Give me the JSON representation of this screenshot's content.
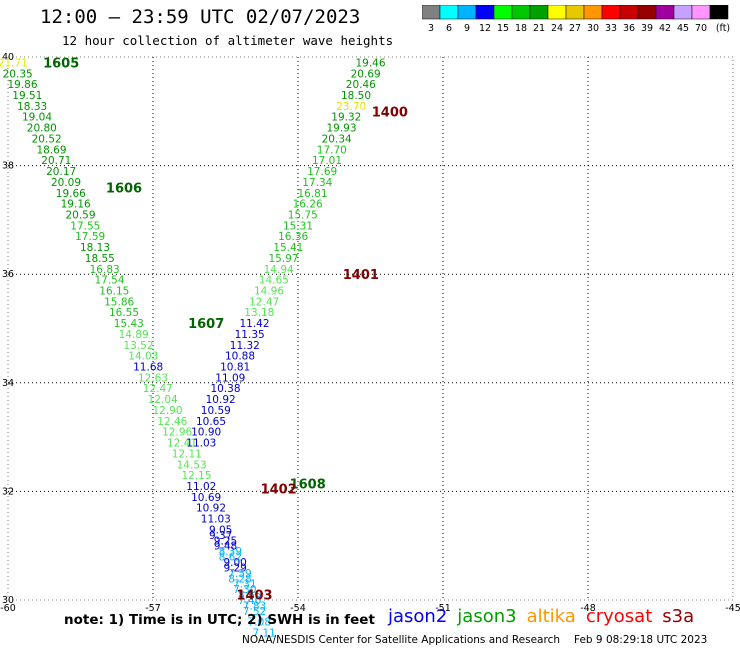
{
  "header": {
    "title": "12:00 — 23:59 UTC 02/07/2023",
    "subtitle": "12 hour collection of altimeter wave heights"
  },
  "colorbar": {
    "colors": [
      "#808080",
      "#00ffff",
      "#00b4ff",
      "#0000ff",
      "#00ff00",
      "#00c800",
      "#00a000",
      "#ffff00",
      "#e6c800",
      "#ff9600",
      "#ff0000",
      "#c80000",
      "#960000",
      "#a000a0",
      "#c8a0ff",
      "#ff96ff",
      "#000000"
    ],
    "labels": [
      "3",
      "6",
      "9",
      "12",
      "15",
      "18",
      "21",
      "24",
      "27",
      "30",
      "33",
      "36",
      "39",
      "42",
      "45",
      "70",
      "(ft)"
    ]
  },
  "note": "note:  1) Time is in UTC; 2) SWH is in feet",
  "legend": [
    {
      "label": "jason2",
      "color": "#0000ff"
    },
    {
      "label": "jason3",
      "color": "#00a000"
    },
    {
      "label": "altika",
      "color": "#ff9600"
    },
    {
      "label": "cryosat",
      "color": "#ff0000"
    },
    {
      "label": "s3a",
      "color": "#960000"
    }
  ],
  "footer": {
    "source": "NOAA/NESDIS Center for Satellite Applications and Research",
    "timestamp": "Feb  9 08:29:18 UTC 2023"
  },
  "chart_data": {
    "type": "scatter",
    "xlim": [
      -60,
      -45
    ],
    "ylim": [
      30,
      40
    ],
    "x_ticks": [
      "-60",
      "-57",
      "-54",
      "-51",
      "-48",
      "-45"
    ],
    "y_ticks": [
      "30",
      "32",
      "34",
      "36",
      "38",
      "40"
    ],
    "grid": true,
    "track_labels": [
      {
        "label": "1605",
        "x": -58.9,
        "y": 39.9,
        "color": "#006400"
      },
      {
        "label": "1606",
        "x": -57.6,
        "y": 37.6,
        "color": "#006400"
      },
      {
        "label": "1607",
        "x": -55.9,
        "y": 35.1,
        "color": "#006400"
      },
      {
        "label": "1608",
        "x": -53.8,
        "y": 32.15,
        "color": "#006400"
      },
      {
        "label": "1400",
        "x": -52.1,
        "y": 39.0,
        "color": "#800000"
      },
      {
        "label": "1401",
        "x": -52.7,
        "y": 36.0,
        "color": "#800000"
      },
      {
        "label": "1402",
        "x": -54.4,
        "y": 32.05,
        "color": "#800000"
      },
      {
        "label": "1403",
        "x": -54.9,
        "y": 30.1,
        "color": "#800000"
      }
    ],
    "series": [
      {
        "name": "jason3",
        "points": [
          {
            "x": -59.9,
            "y": 39.9,
            "v": "21.71"
          },
          {
            "x": -59.8,
            "y": 39.7,
            "v": "20.35"
          },
          {
            "x": -59.7,
            "y": 39.5,
            "v": "19.86"
          },
          {
            "x": -59.6,
            "y": 39.3,
            "v": "19.51"
          },
          {
            "x": -59.5,
            "y": 39.1,
            "v": "18.33"
          },
          {
            "x": -59.4,
            "y": 38.9,
            "v": "19.04"
          },
          {
            "x": -59.3,
            "y": 38.7,
            "v": "20.80"
          },
          {
            "x": -59.2,
            "y": 38.5,
            "v": "20.52"
          },
          {
            "x": -59.1,
            "y": 38.3,
            "v": "18.69"
          },
          {
            "x": -59.0,
            "y": 38.1,
            "v": "20.71"
          },
          {
            "x": -58.9,
            "y": 37.9,
            "v": "20.17"
          },
          {
            "x": -58.8,
            "y": 37.7,
            "v": "20.09"
          },
          {
            "x": -58.7,
            "y": 37.5,
            "v": "19.66"
          },
          {
            "x": -58.6,
            "y": 37.3,
            "v": "19.16"
          },
          {
            "x": -58.5,
            "y": 37.1,
            "v": "20.59"
          },
          {
            "x": -58.4,
            "y": 36.9,
            "v": "17.55"
          },
          {
            "x": -58.3,
            "y": 36.7,
            "v": "17.59"
          },
          {
            "x": -58.2,
            "y": 36.5,
            "v": "18.13"
          },
          {
            "x": -58.1,
            "y": 36.3,
            "v": "18.55"
          },
          {
            "x": -58.0,
            "y": 36.1,
            "v": "16.83"
          },
          {
            "x": -57.9,
            "y": 35.9,
            "v": "17.54"
          },
          {
            "x": -57.8,
            "y": 35.7,
            "v": "16.15"
          },
          {
            "x": -57.7,
            "y": 35.5,
            "v": "15.86"
          },
          {
            "x": -57.6,
            "y": 35.3,
            "v": "16.55"
          },
          {
            "x": -57.5,
            "y": 35.1,
            "v": "15.43"
          },
          {
            "x": -57.4,
            "y": 34.9,
            "v": "14.89"
          },
          {
            "x": -57.3,
            "y": 34.7,
            "v": "13.52"
          },
          {
            "x": -57.2,
            "y": 34.5,
            "v": "14.03"
          },
          {
            "x": -57.1,
            "y": 34.3,
            "v": "11.68"
          },
          {
            "x": -57.0,
            "y": 34.1,
            "v": "12.63"
          },
          {
            "x": -56.9,
            "y": 33.9,
            "v": "12.47"
          },
          {
            "x": -56.8,
            "y": 33.7,
            "v": "12.04"
          },
          {
            "x": -56.7,
            "y": 33.5,
            "v": "12.90"
          },
          {
            "x": -56.6,
            "y": 33.3,
            "v": "12.46"
          },
          {
            "x": -56.5,
            "y": 33.1,
            "v": "12.96"
          },
          {
            "x": -56.4,
            "y": 32.9,
            "v": "12.41"
          },
          {
            "x": -56.3,
            "y": 32.7,
            "v": "12.11"
          },
          {
            "x": -56.2,
            "y": 32.5,
            "v": "14.53"
          },
          {
            "x": -56.1,
            "y": 32.3,
            "v": "12.15"
          },
          {
            "x": -56.0,
            "y": 32.1,
            "v": "11.02"
          },
          {
            "x": -55.9,
            "y": 31.9,
            "v": "10.69"
          },
          {
            "x": -55.8,
            "y": 31.7,
            "v": "10.92"
          },
          {
            "x": -55.7,
            "y": 31.5,
            "v": "11.03"
          },
          {
            "x": -55.6,
            "y": 31.3,
            "v": "9.05"
          },
          {
            "x": -55.5,
            "y": 31.1,
            "v": "9.25"
          },
          {
            "x": -55.4,
            "y": 30.9,
            "v": "8.39"
          },
          {
            "x": -55.3,
            "y": 30.7,
            "v": "9.00"
          },
          {
            "x": -55.2,
            "y": 30.5,
            "v": "7.59"
          },
          {
            "x": -55.1,
            "y": 30.3,
            "v": "7.31"
          },
          {
            "x": -55.0,
            "y": 30.1,
            "v": "8.66"
          },
          {
            "x": -54.9,
            "y": 29.9,
            "v": "7.83"
          }
        ]
      },
      {
        "name": "s3a",
        "points": [
          {
            "x": -52.5,
            "y": 39.9,
            "v": "19.46"
          },
          {
            "x": -52.6,
            "y": 39.7,
            "v": "20.69"
          },
          {
            "x": -52.7,
            "y": 39.5,
            "v": "20.46"
          },
          {
            "x": -52.8,
            "y": 39.3,
            "v": "18.50"
          },
          {
            "x": -52.9,
            "y": 39.1,
            "v": "23.70"
          },
          {
            "x": -53.0,
            "y": 38.9,
            "v": "19.32"
          },
          {
            "x": -53.1,
            "y": 38.7,
            "v": "19.93"
          },
          {
            "x": -53.2,
            "y": 38.5,
            "v": "20.34"
          },
          {
            "x": -53.3,
            "y": 38.3,
            "v": "17.70"
          },
          {
            "x": -53.4,
            "y": 38.1,
            "v": "17.01"
          },
          {
            "x": -53.5,
            "y": 37.9,
            "v": "17.69"
          },
          {
            "x": -53.6,
            "y": 37.7,
            "v": "17.34"
          },
          {
            "x": -53.7,
            "y": 37.5,
            "v": "16.81"
          },
          {
            "x": -53.8,
            "y": 37.3,
            "v": "16.26"
          },
          {
            "x": -53.9,
            "y": 37.1,
            "v": "15.75"
          },
          {
            "x": -54.0,
            "y": 36.9,
            "v": "15.31"
          },
          {
            "x": -54.1,
            "y": 36.7,
            "v": "16.36"
          },
          {
            "x": -54.2,
            "y": 36.5,
            "v": "15.41"
          },
          {
            "x": -54.3,
            "y": 36.3,
            "v": "15.97"
          },
          {
            "x": -54.4,
            "y": 36.1,
            "v": "14.94"
          },
          {
            "x": -54.5,
            "y": 35.9,
            "v": "14.65"
          },
          {
            "x": -54.6,
            "y": 35.7,
            "v": "14.96"
          },
          {
            "x": -54.7,
            "y": 35.5,
            "v": "12.47"
          },
          {
            "x": -54.8,
            "y": 35.3,
            "v": "13.18"
          },
          {
            "x": -54.9,
            "y": 35.1,
            "v": "11.42"
          },
          {
            "x": -55.0,
            "y": 34.9,
            "v": "11.35"
          },
          {
            "x": -55.1,
            "y": 34.7,
            "v": "11.32"
          },
          {
            "x": -55.2,
            "y": 34.5,
            "v": "10.88"
          },
          {
            "x": -55.3,
            "y": 34.3,
            "v": "10.81"
          },
          {
            "x": -55.4,
            "y": 34.1,
            "v": "11.09"
          },
          {
            "x": -55.5,
            "y": 33.9,
            "v": "10.38"
          },
          {
            "x": -55.6,
            "y": 33.7,
            "v": "10.92"
          },
          {
            "x": -55.7,
            "y": 33.5,
            "v": "10.59"
          },
          {
            "x": -55.8,
            "y": 33.3,
            "v": "10.65"
          },
          {
            "x": -55.9,
            "y": 33.1,
            "v": "10.90"
          },
          {
            "x": -56.0,
            "y": 32.9,
            "v": "11.03"
          },
          {
            "x": -55.6,
            "y": 31.2,
            "v": "9.37"
          },
          {
            "x": -55.5,
            "y": 31.0,
            "v": "9.48"
          },
          {
            "x": -55.4,
            "y": 30.8,
            "v": "8.62"
          },
          {
            "x": -55.3,
            "y": 30.6,
            "v": "9.29"
          },
          {
            "x": -55.2,
            "y": 30.4,
            "v": "8.28"
          },
          {
            "x": -55.1,
            "y": 30.2,
            "v": "7.30"
          },
          {
            "x": -55.0,
            "y": 30.0,
            "v": "7.40"
          },
          {
            "x": -54.9,
            "y": 29.8,
            "v": "7.52"
          },
          {
            "x": -54.8,
            "y": 29.6,
            "v": "7.08"
          },
          {
            "x": -54.7,
            "y": 29.4,
            "v": "7.11"
          }
        ]
      }
    ]
  }
}
